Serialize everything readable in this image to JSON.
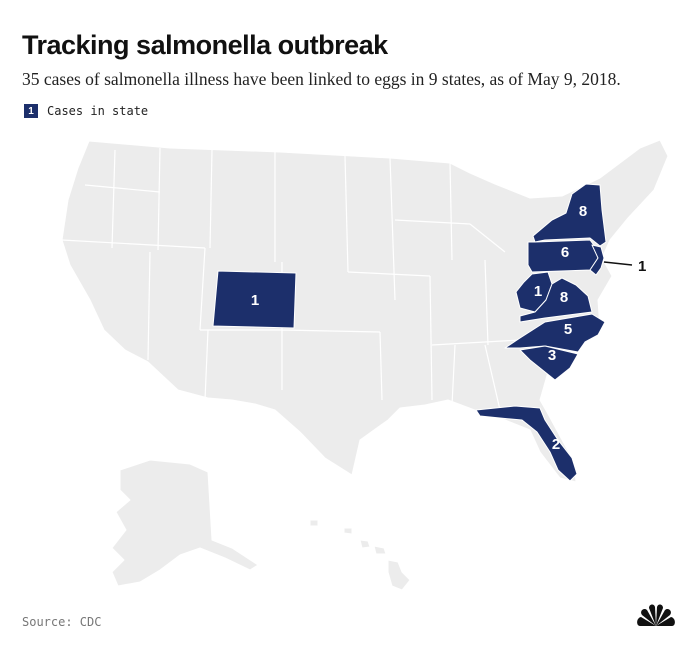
{
  "title": "Tracking salmonella outbreak",
  "subtitle": "35 cases of salmonella illness have been linked to eggs in 9 states, as of May 9, 2018.",
  "legend": {
    "swatch_value": "1",
    "label": "Cases in state"
  },
  "source": "Source: CDC",
  "colors": {
    "affected": "#1c2f6b",
    "unaffected": "#ececec",
    "border": "#ffffff",
    "label": "#ffffff"
  },
  "states": [
    {
      "id": "colorado",
      "cases": "1"
    },
    {
      "id": "new-york",
      "cases": "8"
    },
    {
      "id": "pennsylvania",
      "cases": "6"
    },
    {
      "id": "new-jersey",
      "cases": "1"
    },
    {
      "id": "west-virginia",
      "cases": "1"
    },
    {
      "id": "virginia",
      "cases": "8"
    },
    {
      "id": "north-carolina",
      "cases": "5"
    },
    {
      "id": "south-carolina",
      "cases": "3"
    },
    {
      "id": "florida",
      "cases": "2"
    }
  ],
  "icons": {
    "logo": "nbc-peacock-icon"
  }
}
